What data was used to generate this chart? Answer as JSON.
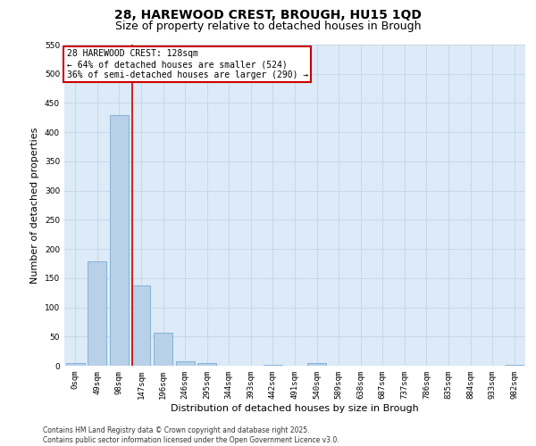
{
  "title": "28, HAREWOOD CREST, BROUGH, HU15 1QD",
  "subtitle": "Size of property relative to detached houses in Brough",
  "xlabel": "Distribution of detached houses by size in Brough",
  "ylabel": "Number of detached properties",
  "bar_color": "#b8d0e8",
  "bar_edge_color": "#7aadd4",
  "grid_color": "#c8d8e8",
  "background_color": "#ddeaf7",
  "vline_color": "#cc0000",
  "vline_x": 2.6,
  "annotation_box_text": "28 HAREWOOD CREST: 128sqm\n← 64% of detached houses are smaller (524)\n36% of semi-detached houses are larger (290) →",
  "annotation_box_color": "#cc0000",
  "categories": [
    "0sqm",
    "49sqm",
    "98sqm",
    "147sqm",
    "196sqm",
    "246sqm",
    "295sqm",
    "344sqm",
    "393sqm",
    "442sqm",
    "491sqm",
    "540sqm",
    "589sqm",
    "638sqm",
    "687sqm",
    "737sqm",
    "786sqm",
    "835sqm",
    "884sqm",
    "933sqm",
    "982sqm"
  ],
  "values": [
    5,
    178,
    430,
    137,
    57,
    8,
    5,
    0,
    0,
    2,
    0,
    4,
    0,
    0,
    0,
    0,
    0,
    0,
    0,
    0,
    2
  ],
  "ylim": [
    0,
    550
  ],
  "yticks": [
    0,
    50,
    100,
    150,
    200,
    250,
    300,
    350,
    400,
    450,
    500,
    550
  ],
  "footer_text": "Contains HM Land Registry data © Crown copyright and database right 2025.\nContains public sector information licensed under the Open Government Licence v3.0.",
  "title_fontsize": 10,
  "subtitle_fontsize": 9,
  "tick_fontsize": 6.5,
  "ylabel_fontsize": 8,
  "xlabel_fontsize": 8,
  "annotation_fontsize": 7,
  "footer_fontsize": 5.5
}
